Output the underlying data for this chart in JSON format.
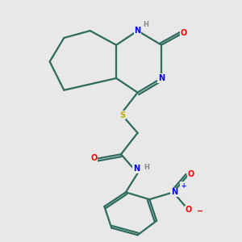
{
  "bg_color": "#e8e8e8",
  "bond_color": "#2d6b5e",
  "bond_width": 1.6,
  "atom_colors": {
    "N": "#0000ee",
    "O": "#ff0000",
    "S": "#b8b000",
    "H": "#888888",
    "C": "#2d6b5e"
  },
  "figsize": [
    3.0,
    3.0
  ],
  "dpi": 100
}
